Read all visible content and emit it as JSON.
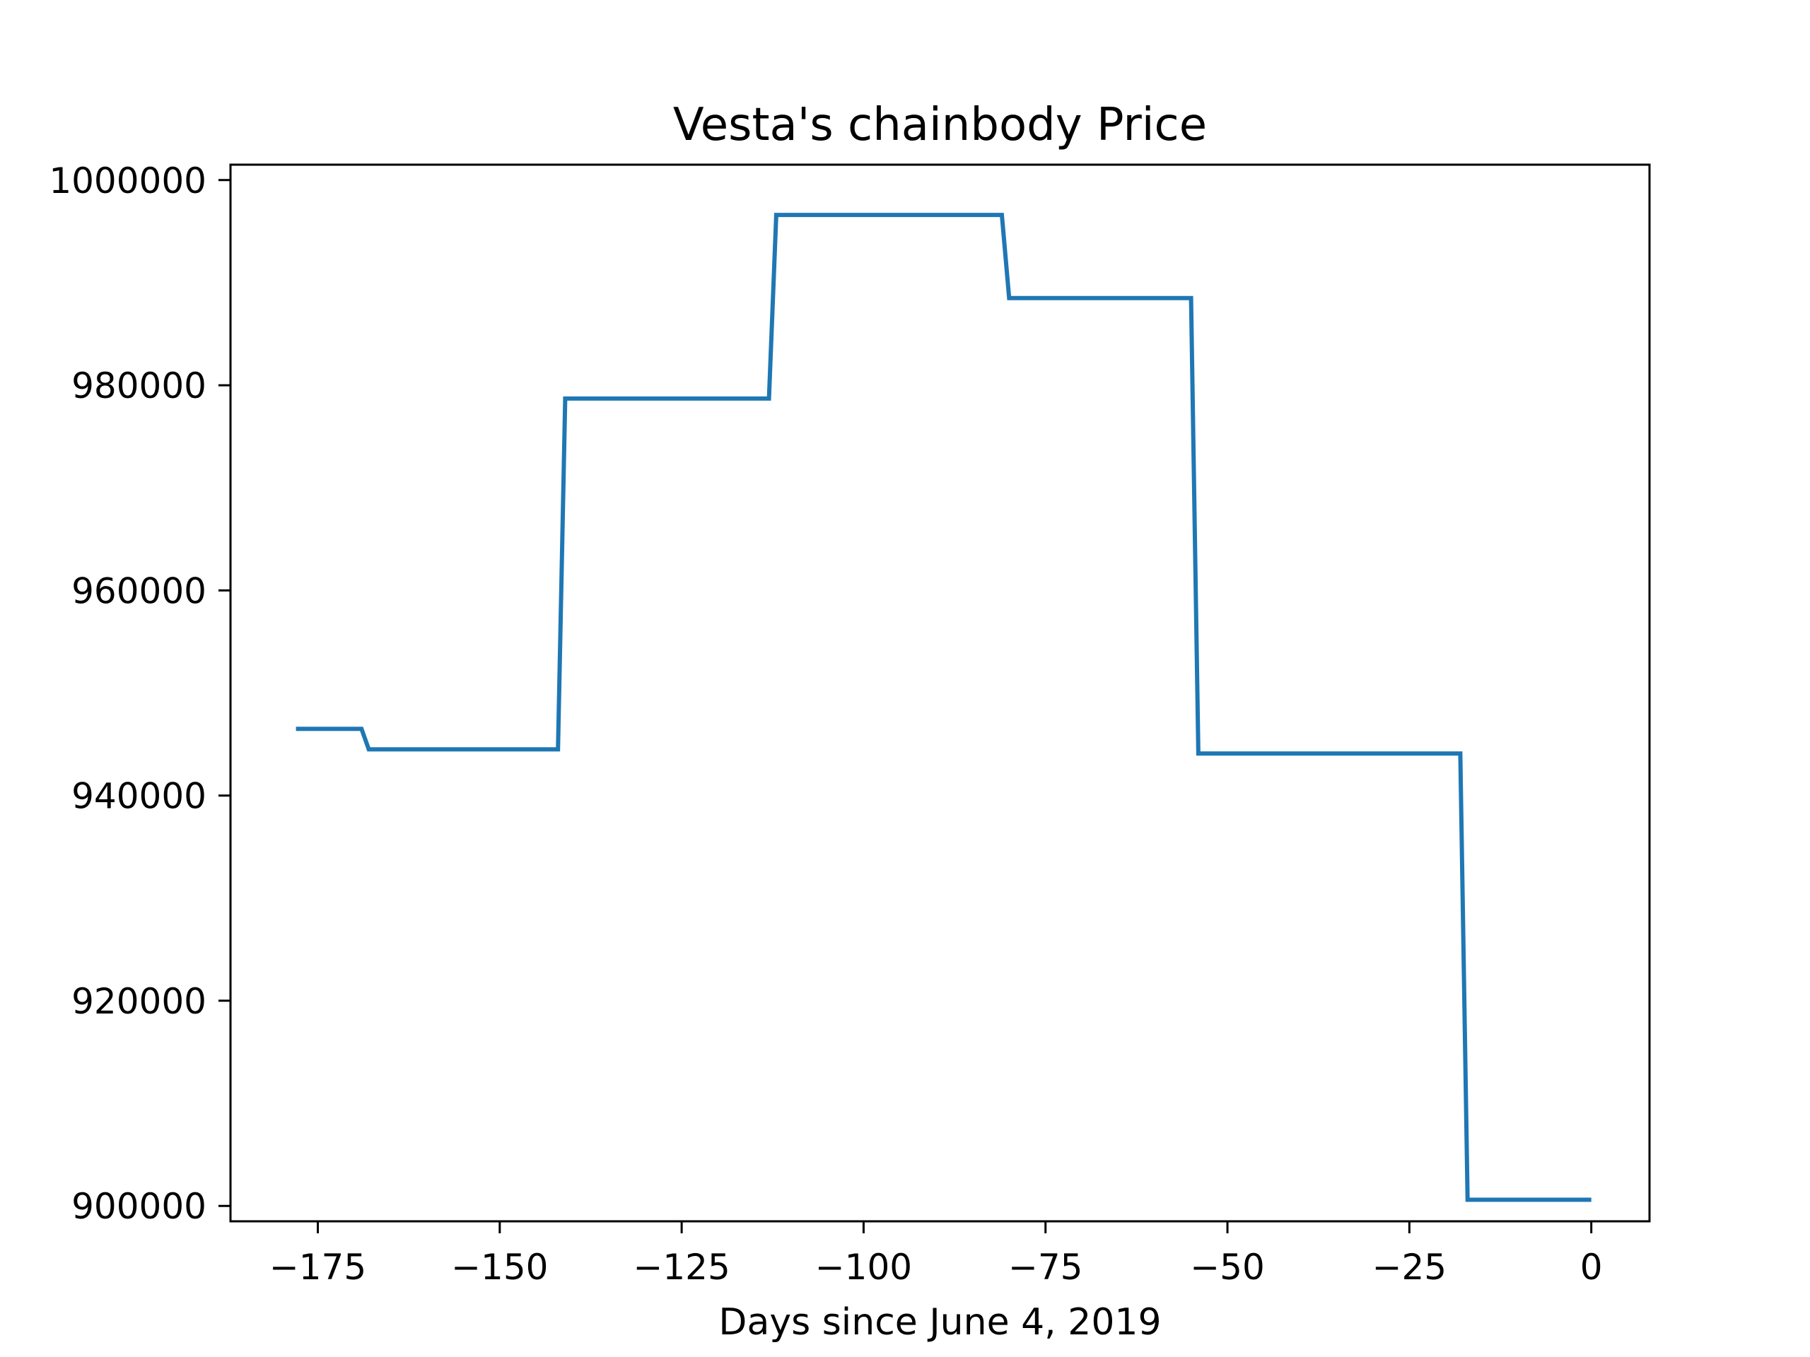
{
  "chart_data": {
    "type": "line",
    "title": "Vesta's chainbody Price",
    "xlabel": "Days since June 4, 2019",
    "ylabel": "",
    "xlim": [
      -187,
      8
    ],
    "ylim": [
      898500,
      1001500
    ],
    "x_ticks": [
      -175,
      -150,
      -125,
      -100,
      -75,
      -50,
      -25,
      0
    ],
    "x_tick_labels": [
      "−175",
      "−150",
      "−125",
      "−100",
      "−75",
      "−50",
      "−25",
      "0"
    ],
    "y_ticks": [
      900000,
      920000,
      940000,
      960000,
      980000,
      1000000
    ],
    "y_tick_labels": [
      "900000",
      "920000",
      "940000",
      "960000",
      "980000",
      "1000000"
    ],
    "grid": false,
    "series": [
      {
        "color": "#1f77b4",
        "x": [
          -178,
          -169,
          -168,
          -142,
          -141,
          -113,
          -112,
          -81,
          -80,
          -55,
          -54,
          -18,
          -17,
          0
        ],
        "y": [
          946500,
          946500,
          944500,
          944500,
          978700,
          978700,
          996600,
          996600,
          988500,
          988500,
          944100,
          944100,
          900600,
          900600
        ]
      }
    ]
  }
}
